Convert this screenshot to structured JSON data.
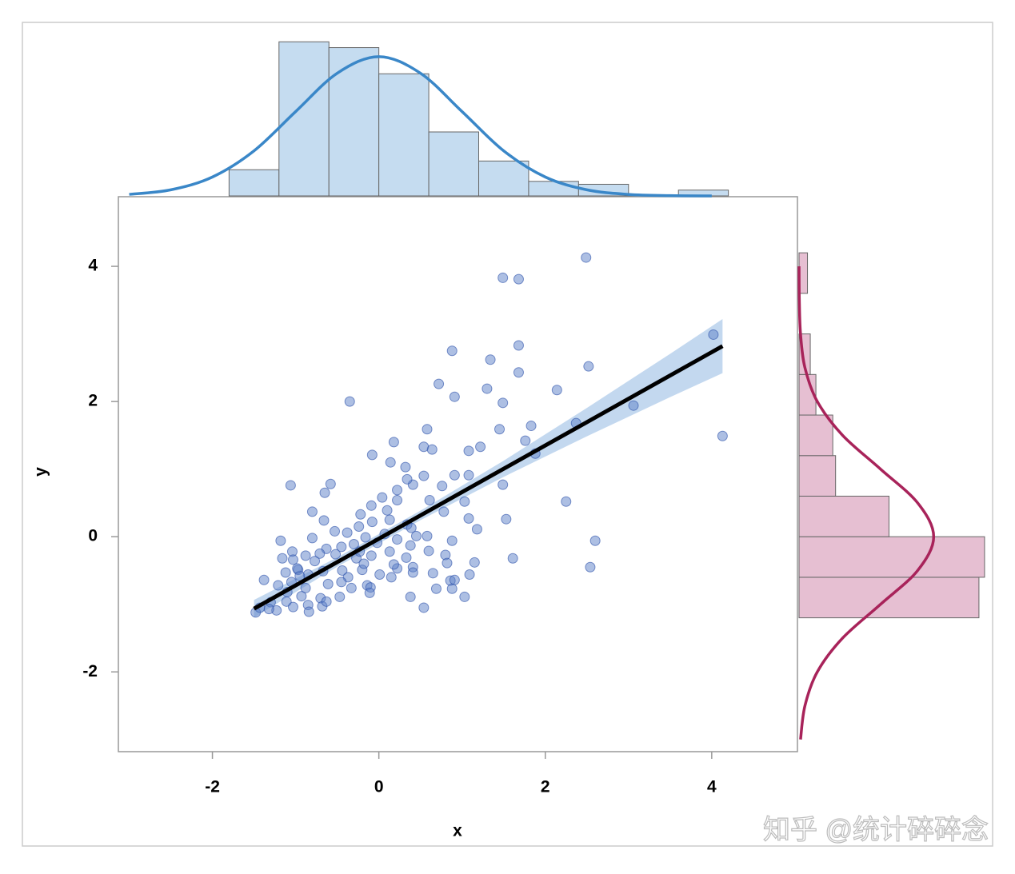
{
  "chart_data": [
    {
      "type": "scatter",
      "x_label": "x",
      "y_label": "y",
      "xlim": [
        -3.13,
        5.03
      ],
      "ylim": [
        -3.18,
        5.03
      ],
      "xticks": [
        -2,
        0,
        2,
        4
      ],
      "yticks": [
        -2,
        0,
        2,
        4
      ],
      "color": "#5b7fc7",
      "x": [
        2.49,
        1.49,
        1.68,
        4.02,
        0.88,
        1.68,
        1.34,
        2.52,
        1.68,
        0.72,
        1.3,
        2.14,
        -0.35,
        0.91,
        1.49,
        3.06,
        2.37,
        1.83,
        1.45,
        0.58,
        4.13,
        0.18,
        1.22,
        0.54,
        0.64,
        1.08,
        1.76,
        1.88,
        -0.08,
        0.14,
        0.32,
        0.41,
        0.54,
        0.91,
        1.08,
        1.49,
        0.76,
        -1.06,
        -0.58,
        -0.65,
        0.22,
        0.34,
        2.25,
        1.03,
        0.61,
        0.04,
        -0.09,
        -0.8,
        -0.66,
        -0.22,
        0.1,
        0.22,
        0.78,
        1.08,
        1.53,
        -0.24,
        -0.08,
        0.13,
        0.34,
        1.18,
        -1.18,
        -0.8,
        -0.38,
        -0.16,
        0.07,
        0.39,
        2.6,
        0.88,
        0.45,
        0.22,
        0.58,
        -1.04,
        -0.88,
        -0.63,
        -0.45,
        -0.3,
        -0.02,
        0.13,
        0.38,
        0.6,
        0.8,
        1.61,
        1.15,
        -1.16,
        -1.03,
        -0.77,
        -0.52,
        -0.27,
        -0.09,
        0.33,
        2.54,
        0.41,
        0.22,
        -0.2,
        -0.44,
        -0.67,
        -0.97,
        0.82,
        0.65,
        0.15,
        0.01,
        -0.37,
        -0.85,
        -1.38,
        -1.21,
        -1.05,
        -0.88,
        -0.61,
        -0.45,
        -0.14,
        0.86,
        0.91,
        1.09,
        0.69,
        -1.1,
        -0.93,
        -0.7,
        -0.47,
        0.38,
        1.03,
        0.88,
        -1.3,
        -1.11,
        -0.85,
        -0.68,
        0.54,
        -1.48,
        -1.43,
        -1.23,
        -1.03,
        -0.84,
        -0.63,
        -0.1,
        -0.11,
        -1.32,
        0.18,
        -0.23,
        -0.53,
        -0.71,
        -0.95,
        -0.33,
        0.41,
        -0.18,
        -0.98,
        -1.12
      ],
      "values": [
        4.13,
        3.83,
        3.81,
        2.99,
        2.75,
        2.83,
        2.62,
        2.52,
        2.43,
        2.26,
        2.19,
        2.17,
        2.0,
        2.07,
        1.98,
        1.94,
        1.68,
        1.64,
        1.59,
        1.59,
        1.49,
        1.4,
        1.33,
        1.33,
        1.29,
        1.27,
        1.42,
        1.23,
        1.21,
        1.1,
        1.03,
        0.77,
        0.9,
        0.91,
        0.91,
        0.77,
        0.75,
        0.76,
        0.78,
        0.65,
        0.69,
        0.85,
        0.52,
        0.52,
        0.54,
        0.58,
        0.46,
        0.37,
        0.24,
        0.33,
        0.39,
        0.54,
        0.37,
        0.27,
        0.26,
        0.15,
        0.22,
        0.25,
        0.18,
        0.11,
        -0.06,
        -0.02,
        0.06,
        -0.01,
        0.04,
        0.13,
        -0.06,
        -0.06,
        0.01,
        -0.04,
        0.01,
        -0.22,
        -0.28,
        -0.18,
        -0.15,
        -0.11,
        -0.09,
        -0.22,
        -0.13,
        -0.21,
        -0.27,
        -0.32,
        -0.38,
        -0.32,
        -0.34,
        -0.36,
        -0.26,
        -0.32,
        -0.28,
        -0.31,
        -0.45,
        -0.45,
        -0.47,
        -0.49,
        -0.5,
        -0.51,
        -0.49,
        -0.39,
        -0.54,
        -0.6,
        -0.56,
        -0.6,
        -0.56,
        -0.64,
        -0.72,
        -0.67,
        -0.76,
        -0.7,
        -0.67,
        -0.72,
        -0.65,
        -0.64,
        -0.56,
        -0.77,
        -0.82,
        -0.88,
        -0.91,
        -0.89,
        -0.89,
        -0.89,
        -0.77,
        -0.97,
        -0.96,
        -1.01,
        -1.03,
        -1.05,
        -1.12,
        -1.05,
        -1.09,
        -1.04,
        -1.11,
        -0.96,
        -0.75,
        -0.83,
        -1.07,
        -0.41,
        -0.22,
        0.08,
        -0.25,
        -0.58,
        -0.76,
        -0.53,
        -0.4,
        -0.47,
        -0.53
      ],
      "fit": {
        "color": "#000000",
        "band_color": "#b9d1ec",
        "x": [
          -1.5,
          -0.5,
          0.5,
          1.5,
          2.5,
          3.5,
          4.13
        ],
        "values": [
          -1.065,
          -0.375,
          0.315,
          1.005,
          1.695,
          2.385,
          2.82
        ],
        "lower": [
          -1.195,
          -0.445,
          0.245,
          0.885,
          1.485,
          2.065,
          2.42
        ],
        "upper": [
          -0.935,
          -0.305,
          0.385,
          1.125,
          1.905,
          2.705,
          3.22
        ]
      }
    },
    {
      "type": "histogram",
      "orientation": "vertical",
      "color": "#c5dcf0",
      "xlim": [
        -3.13,
        5.03
      ],
      "ylim": [
        0,
        55
      ],
      "bins": [
        -1.8,
        -1.2,
        -0.6,
        0,
        0.6,
        1.2,
        1.8,
        2.4,
        3.0,
        3.6,
        4.2
      ],
      "values": [
        9,
        53,
        51,
        42,
        22,
        12,
        5,
        4,
        0,
        2
      ],
      "density": {
        "color": "#3a87c8",
        "x": [
          -3,
          -2.5,
          -2,
          -1.5,
          -1,
          -0.5,
          0,
          0.5,
          1,
          1.5,
          2,
          2.5,
          3,
          3.5,
          4
        ],
        "values": [
          0.53,
          2.1,
          6.5,
          15.5,
          29.0,
          42.2,
          47.9,
          42.2,
          29.0,
          15.5,
          6.5,
          2.1,
          0.53,
          0.1,
          0.0
        ]
      }
    },
    {
      "type": "histogram",
      "orientation": "horizontal",
      "color": "#e6bfd2",
      "ylim": [
        -3.18,
        5.03
      ],
      "xlim": [
        0,
        70
      ],
      "bins": [
        -1.2,
        -0.6,
        0,
        0.6,
        1.2,
        1.8,
        2.4,
        3.0,
        3.6,
        4.2
      ],
      "values": [
        64,
        66,
        32,
        13,
        12,
        6,
        4,
        0,
        3
      ],
      "density": {
        "color": "#a8235a",
        "x": [
          -3,
          -2.5,
          -2,
          -1.5,
          -1,
          -0.5,
          0,
          0.5,
          1,
          1.5,
          2,
          2.5,
          3,
          3.5,
          4
        ],
        "values": [
          0.53,
          2.1,
          6.5,
          15.5,
          29.0,
          42.2,
          47.9,
          42.2,
          29.0,
          15.5,
          6.5,
          2.1,
          0.53,
          0.1,
          0.0
        ]
      }
    }
  ],
  "watermark": "知乎 @统计碎碎念"
}
